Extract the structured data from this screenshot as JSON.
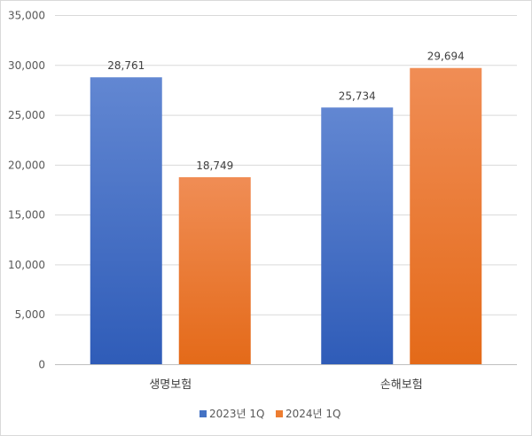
{
  "chart_data": {
    "type": "bar",
    "categories": [
      "생명보험",
      "손해보험"
    ],
    "series": [
      {
        "name": "2023년 1Q",
        "values": [
          28761,
          25734
        ],
        "labels": [
          "28,761",
          "25,734"
        ],
        "color": "#4472c4"
      },
      {
        "name": "2024년 1Q",
        "values": [
          18749,
          29694
        ],
        "labels": [
          "18,749",
          "29,694"
        ],
        "color": "#ed7d31"
      }
    ],
    "ylim": [
      0,
      35000
    ],
    "yticks": [
      0,
      5000,
      10000,
      15000,
      20000,
      25000,
      30000,
      35000
    ],
    "ytick_labels": [
      "0",
      "5,000",
      "10,000",
      "15,000",
      "20,000",
      "25,000",
      "30,000",
      "35,000"
    ],
    "grid": true,
    "legend_position": "bottom"
  }
}
